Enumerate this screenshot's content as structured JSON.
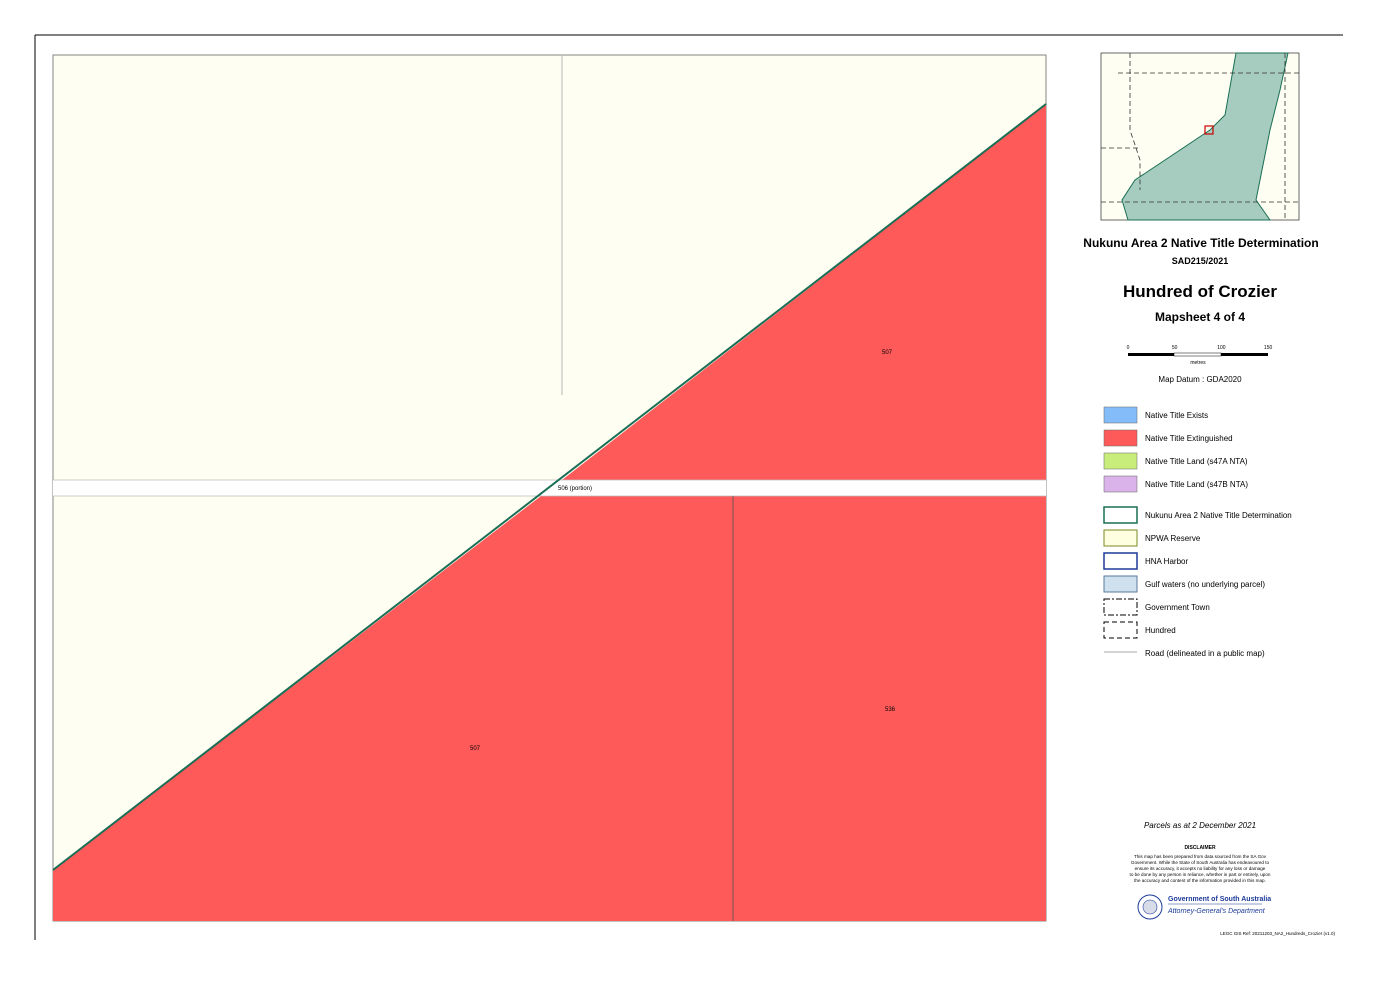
{
  "title": "Nukunu Area 2 Native Title Determination",
  "case_number": "SAD215/2021",
  "sheet_name": "Hundred of Crozier",
  "sheet_number": "Mapsheet 4 of 4",
  "scale": {
    "ticks": [
      "0",
      "50",
      "100",
      "150"
    ],
    "unit": "metres"
  },
  "datum": "Map Datum : GDA2020",
  "legend": [
    "Native Title Exists",
    "Native Title Extinguished",
    "Native Title Land (s47A NTA)",
    "Native Title Land (s47B NTA)",
    "Nukunu Area 2 Native Title Determination",
    "NPWA Reserve",
    "HNA Harbor",
    "Gulf waters (no underlying parcel)",
    "Government Town",
    "Hundred",
    "Road (delineated in a public map)"
  ],
  "parcels_date": "Parcels as at 2 December 2021",
  "disclaimer_title": "DISCLAIMER",
  "disclaimer_lines": [
    "This map has been prepared from data sourced from the SA Gov",
    "Government. While the State of South Australia has endeavoured to",
    "ensure its accuracy, it accepts no liability for any loss or damage",
    "to be done by any person in reliance, whether in part or entirely, upon",
    "the accuracy and content of the information provided in this map."
  ],
  "agency": {
    "government": "Government of South Australia",
    "department": "Attorney-General's Department"
  },
  "map_labels": {
    "parcel_upper": "507",
    "road": "506 (portion)",
    "parcel_lower": "507",
    "parcel_right": "536"
  },
  "footer": "LEGC GIS Ref: 20211203_NA2_Hundreds_Crozier (v1.0)"
}
